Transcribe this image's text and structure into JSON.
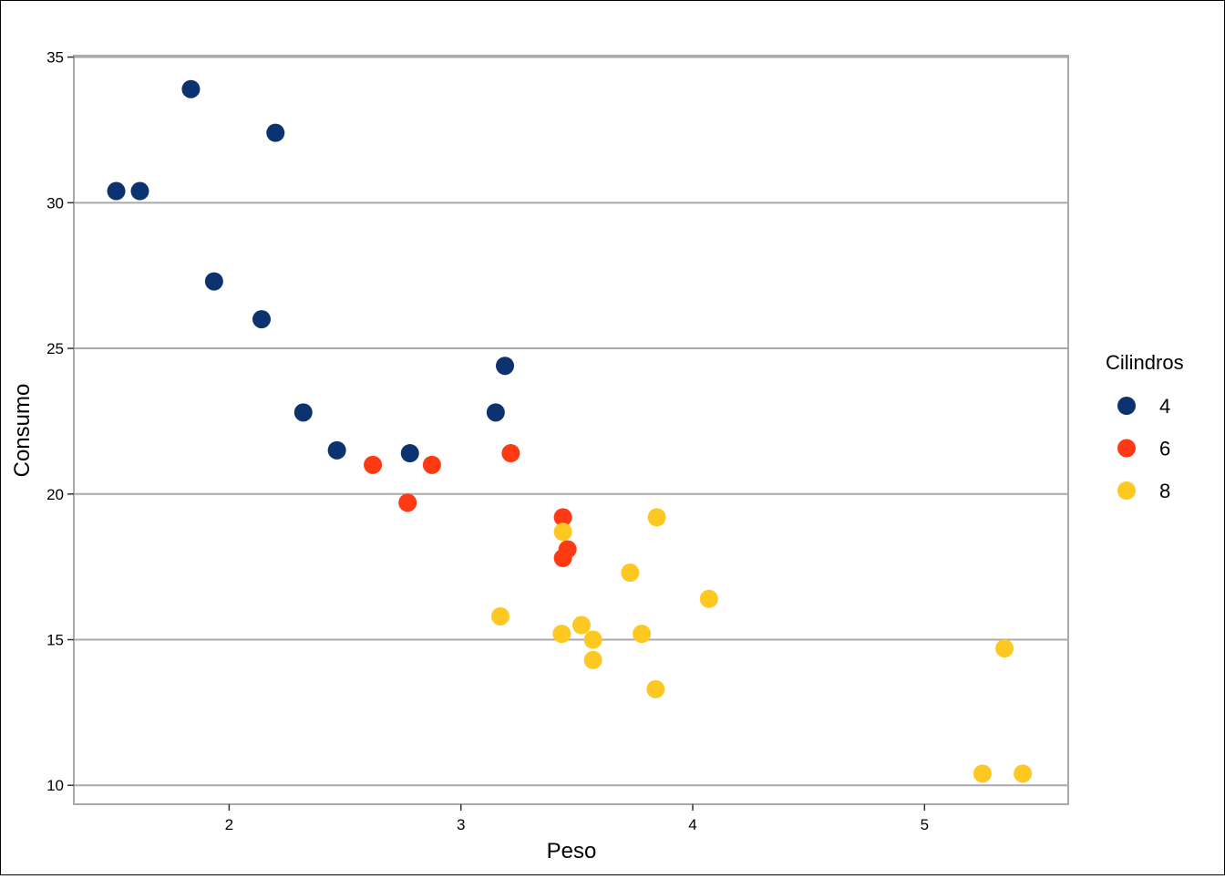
{
  "chart_data": {
    "type": "scatter",
    "xlabel": "Peso",
    "ylabel": "Consumo",
    "xlim": [
      1.33,
      5.62
    ],
    "ylim": [
      9.35,
      35.05
    ],
    "x_ticks": [
      2,
      3,
      4,
      5
    ],
    "y_ticks": [
      10,
      15,
      20,
      25,
      30,
      35
    ],
    "grid": "horizontal",
    "legend": {
      "title": "Cilindros",
      "placement": "right"
    },
    "series": [
      {
        "name": "4",
        "color": "#0d3270",
        "points": [
          {
            "x": 2.32,
            "y": 22.8
          },
          {
            "x": 3.19,
            "y": 24.4
          },
          {
            "x": 3.15,
            "y": 22.8
          },
          {
            "x": 2.2,
            "y": 32.4
          },
          {
            "x": 1.615,
            "y": 30.4
          },
          {
            "x": 1.835,
            "y": 33.9
          },
          {
            "x": 2.465,
            "y": 21.5
          },
          {
            "x": 1.935,
            "y": 27.3
          },
          {
            "x": 2.14,
            "y": 26.0
          },
          {
            "x": 1.513,
            "y": 30.4
          },
          {
            "x": 2.78,
            "y": 21.4
          }
        ]
      },
      {
        "name": "6",
        "color": "#fd3a14",
        "points": [
          {
            "x": 2.62,
            "y": 21.0
          },
          {
            "x": 2.875,
            "y": 21.0
          },
          {
            "x": 3.215,
            "y": 21.4
          },
          {
            "x": 3.44,
            "y": 19.2
          },
          {
            "x": 3.44,
            "y": 17.8
          },
          {
            "x": 3.46,
            "y": 18.1
          },
          {
            "x": 2.77,
            "y": 19.7
          }
        ]
      },
      {
        "name": "8",
        "color": "#fdc822",
        "points": [
          {
            "x": 3.44,
            "y": 18.7
          },
          {
            "x": 3.57,
            "y": 14.3
          },
          {
            "x": 4.07,
            "y": 16.4
          },
          {
            "x": 3.73,
            "y": 17.3
          },
          {
            "x": 3.78,
            "y": 15.2
          },
          {
            "x": 5.25,
            "y": 10.4
          },
          {
            "x": 5.424,
            "y": 10.4
          },
          {
            "x": 5.345,
            "y": 14.7
          },
          {
            "x": 3.52,
            "y": 15.5
          },
          {
            "x": 3.435,
            "y": 15.2
          },
          {
            "x": 3.84,
            "y": 13.3
          },
          {
            "x": 3.845,
            "y": 19.2
          },
          {
            "x": 3.17,
            "y": 15.8
          },
          {
            "x": 3.57,
            "y": 15.0
          }
        ]
      }
    ]
  }
}
